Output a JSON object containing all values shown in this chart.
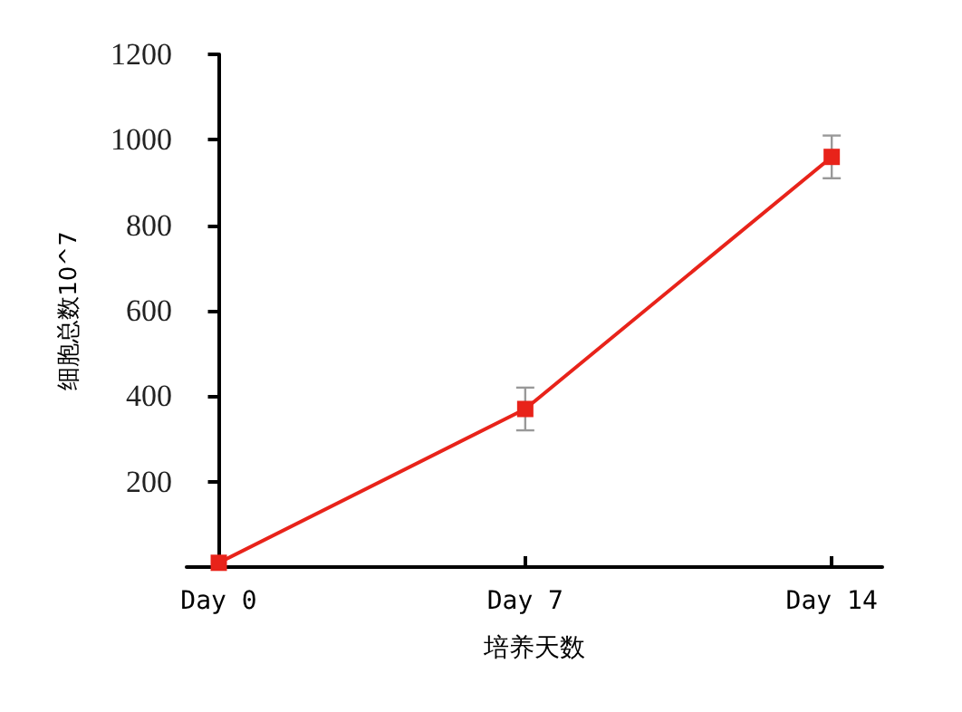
{
  "chart_data": {
    "type": "line",
    "xlabel": "培养天数",
    "ylabel": "细胞总数10^7",
    "categories": [
      "Day 0",
      "Day 7",
      "Day 14"
    ],
    "series": [
      {
        "color": "#e8231a",
        "values": [
          10,
          370,
          960
        ],
        "errors": [
          null,
          50,
          50
        ]
      }
    ],
    "ylim": [
      0,
      1200
    ],
    "yticks": [
      200,
      400,
      600,
      800,
      1000,
      1200
    ],
    "grid": false,
    "marker": "square",
    "line_style": "solid"
  }
}
